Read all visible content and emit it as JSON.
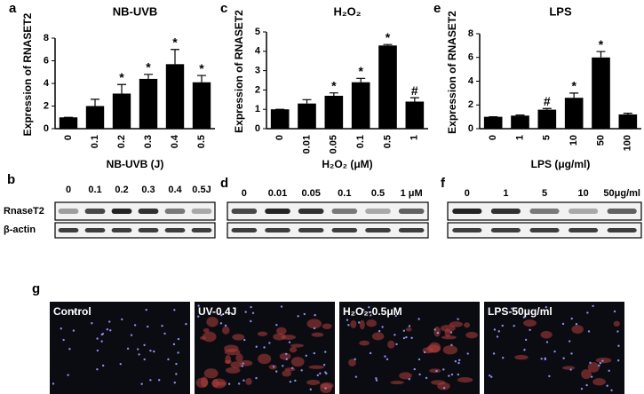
{
  "chart_data": [
    {
      "type": "bar",
      "panel": "a",
      "title": "NB-UVB",
      "x_label": "NB-UVB (J)",
      "y_label": "Expression of RNASET2",
      "categories": [
        "0",
        "0.1",
        "0.2",
        "0.3",
        "0.4",
        "0.5"
      ],
      "values": [
        1,
        2,
        3.1,
        4.4,
        5.7,
        4.1
      ],
      "errors": [
        0,
        0.6,
        0.8,
        0.4,
        1.3,
        0.6
      ],
      "annotations": [
        null,
        null,
        "*",
        "*",
        "*",
        "*"
      ],
      "color": "#000000",
      "ylim": [
        0,
        8
      ],
      "yticks": [
        0,
        2,
        4,
        6,
        8
      ]
    },
    {
      "type": "bar",
      "panel": "c",
      "title": "H₂O₂",
      "x_label": "H₂O₂ (μM)",
      "y_label": "Expression of RNASET2",
      "categories": [
        "0",
        "0.01",
        "0.05",
        "0.1",
        "0.5",
        "1"
      ],
      "values": [
        1,
        1.3,
        1.7,
        2.4,
        4.3,
        1.4
      ],
      "errors": [
        0,
        0.2,
        0.15,
        0.2,
        0.05,
        0.2
      ],
      "annotations": [
        null,
        null,
        "*",
        "*",
        "*",
        "#"
      ],
      "color": "#000000",
      "ylim": [
        0,
        5
      ],
      "yticks": [
        0,
        1,
        2,
        3,
        4,
        5
      ]
    },
    {
      "type": "bar",
      "panel": "e",
      "title": "LPS",
      "x_label": "LPS (μg/ml)",
      "y_label": "Expression of RNASET2",
      "categories": [
        "0",
        "1",
        "5",
        "10",
        "50",
        "100"
      ],
      "values": [
        1,
        1.1,
        1.6,
        2.6,
        6,
        1.2
      ],
      "errors": [
        0,
        0.05,
        0.1,
        0.4,
        0.5,
        0.1
      ],
      "annotations": [
        null,
        null,
        "#",
        "*",
        "*",
        null
      ],
      "color": "#000000",
      "ylim": [
        0,
        8
      ],
      "yticks": [
        0,
        2,
        4,
        6,
        8
      ]
    }
  ],
  "blots": [
    {
      "panel": "b",
      "lanes": [
        "0",
        "0.1",
        "0.2",
        "0.3",
        "0.4",
        "0.5J"
      ],
      "rows": [
        "RnaseT2",
        "β-actin"
      ]
    },
    {
      "panel": "d",
      "lanes": [
        "0",
        "0.01",
        "0.05",
        "0.1",
        "0.5",
        "1 μM"
      ]
    },
    {
      "panel": "f",
      "lanes": [
        "0",
        "1",
        "5",
        "10",
        "50μg/ml"
      ]
    }
  ],
  "images": {
    "panel": "g",
    "labels": [
      "Control",
      "UV-0.4J",
      "H₂O₂-0.5μM",
      "LPS-50μg/ml"
    ]
  }
}
